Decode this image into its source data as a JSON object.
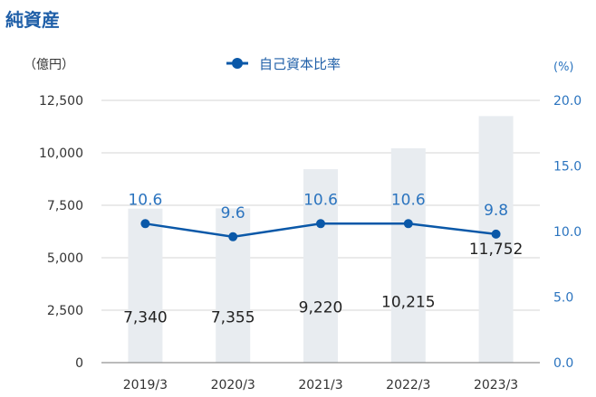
{
  "title": "純資産",
  "chart_data": {
    "type": "bar",
    "categories": [
      "2019/3",
      "2020/3",
      "2021/3",
      "2022/3",
      "2023/3"
    ],
    "series": [
      {
        "values": [
          7340,
          7355,
          9220,
          10215,
          11752
        ],
        "labels": [
          "7,340",
          "7,355",
          "9,220",
          "10,215",
          "11,752"
        ],
        "color": "#e8ecf0"
      },
      {
        "name": "自己資本比率",
        "type": "line",
        "axis": "right",
        "values": [
          10.6,
          9.6,
          10.6,
          10.6,
          9.8
        ],
        "labels": [
          "10.6",
          "9.6",
          "10.6",
          "10.6",
          "9.8"
        ],
        "color": "#0a58a8"
      }
    ],
    "y_left": {
      "unit": "（億円）",
      "range": [
        0,
        12500
      ],
      "ticks": [
        "0",
        "2,500",
        "5,000",
        "7,500",
        "10,000",
        "12,500"
      ]
    },
    "y_right": {
      "unit": "(%)",
      "range": [
        0,
        20
      ],
      "ticks": [
        "0.0",
        "5.0",
        "10.0",
        "15.0",
        "20.0"
      ]
    },
    "legend": {
      "position": "top-center",
      "label": "自己資本比率"
    },
    "grid": true
  }
}
